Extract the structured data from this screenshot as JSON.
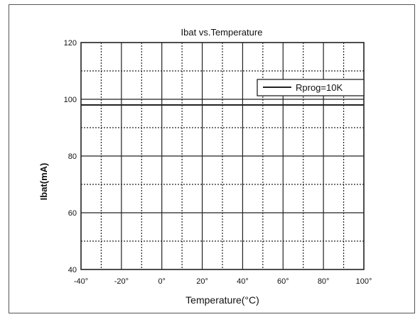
{
  "chart_data": {
    "type": "line",
    "title": "Ibat vs.Temperature",
    "xlabel": "Temperature(°C)",
    "ylabel": "Ibat(mA)",
    "xlim": [
      -40,
      100
    ],
    "ylim": [
      40,
      120
    ],
    "x_ticks": [
      -40,
      -20,
      0,
      20,
      40,
      60,
      80,
      100
    ],
    "x_tick_labels": [
      "-40°",
      "-20°",
      "0°",
      "20°",
      "40°",
      "60°",
      "80°",
      "100°"
    ],
    "y_ticks": [
      40,
      60,
      80,
      100,
      120
    ],
    "y_tick_labels": [
      "40",
      "60",
      "80",
      "100",
      "120"
    ],
    "grid": true,
    "legend_position": "top-right",
    "series": [
      {
        "name": "Rprog=10K",
        "x": [
          -40,
          -20,
          0,
          20,
          40,
          60,
          80,
          100
        ],
        "values": [
          98,
          98,
          98,
          98,
          98,
          98,
          98,
          98
        ]
      }
    ],
    "colors": {
      "line": "#222222",
      "grid": "#222222",
      "frame": "#555555"
    }
  }
}
